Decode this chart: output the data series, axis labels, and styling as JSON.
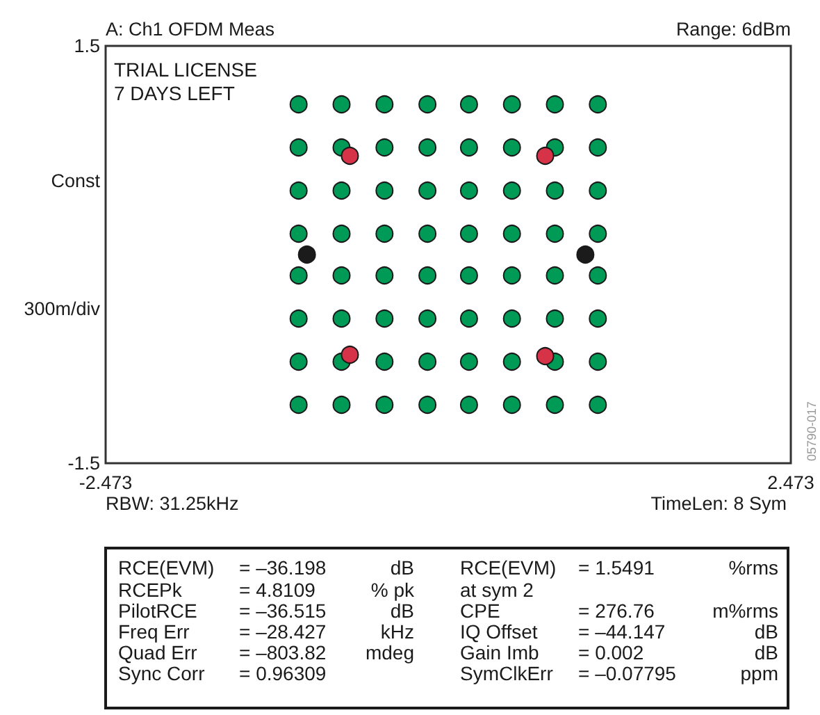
{
  "chart_data": {
    "type": "scatter",
    "title": "A: Ch1 OFDM Meas",
    "subtitle": "Range: 6dBm",
    "ylabel": "Const",
    "annotations": [
      "300m/div",
      "TRIAL LICENSE",
      "7 DAYS LEFT",
      "RBW: 31.25kHz",
      "TimeLen: 8 Sym",
      "05790-017",
      "RCE(EVM)\t= –36.198\tdB\tRCE(EVM)\t= 1.5491\t%rms",
      "RCEPk\t= 4.8109\t% pk\tat sym 2",
      "PilotRCE\t= –36.515\tdB\tCPE\t= 276.76\tm%rms",
      "Freq Err\t= –28.427\tkHz\tIQ Offset\t= –44.147\tdB",
      "Quad Err\t= –803.82\tmdeg\tGain Imb\t= 0.002\tdB",
      "Sync Corr\t= 0.96309\t\tSymClkErr\t= –0.07795\tppm"
    ],
    "xlim": [
      -2.473,
      2.473
    ],
    "xticks": [
      -2.473,
      2.473
    ],
    "ylim": [
      -1.5,
      1.5
    ],
    "yticks": [
      -1.5,
      1.5
    ],
    "marker": "circle",
    "series": [
      {
        "color": "#009a57",
        "x": [
          -1.08,
          -0.77,
          -0.46,
          -0.15,
          0.15,
          0.46,
          0.77,
          1.08,
          -1.08,
          -0.77,
          -0.46,
          -0.15,
          0.15,
          0.46,
          0.77,
          1.08,
          -1.08,
          -0.77,
          -0.46,
          -0.15,
          0.15,
          0.46,
          0.77,
          1.08,
          -1.08,
          -0.77,
          -0.46,
          -0.15,
          0.15,
          0.46,
          0.77,
          1.08,
          -1.08,
          -0.77,
          -0.46,
          -0.15,
          0.15,
          0.46,
          0.77,
          1.08,
          -1.08,
          -0.77,
          -0.46,
          -0.15,
          0.15,
          0.46,
          0.77,
          1.08,
          -1.08,
          -0.77,
          -0.46,
          -0.15,
          0.15,
          0.46,
          0.77,
          1.08,
          -1.08,
          -0.77,
          -0.46,
          -0.15,
          0.15,
          0.46,
          0.77,
          1.08
        ],
        "values": [
          1.08,
          1.08,
          1.08,
          1.08,
          1.08,
          1.08,
          1.08,
          1.08,
          0.77,
          0.77,
          0.77,
          0.77,
          0.77,
          0.77,
          0.77,
          0.77,
          0.46,
          0.46,
          0.46,
          0.46,
          0.46,
          0.46,
          0.46,
          0.46,
          0.15,
          0.15,
          0.15,
          0.15,
          0.15,
          0.15,
          0.15,
          0.15,
          -0.15,
          -0.15,
          -0.15,
          -0.15,
          -0.15,
          -0.15,
          -0.15,
          -0.15,
          -0.46,
          -0.46,
          -0.46,
          -0.46,
          -0.46,
          -0.46,
          -0.46,
          -0.46,
          -0.77,
          -0.77,
          -0.77,
          -0.77,
          -0.77,
          -0.77,
          -0.77,
          -0.77,
          -1.08,
          -1.08,
          -1.08,
          -1.08,
          -1.08,
          -1.08,
          -1.08,
          -1.08
        ]
      },
      {
        "color": "#d63349",
        "x": [
          -0.71,
          0.7,
          -0.71,
          0.7
        ],
        "values": [
          0.71,
          0.71,
          -0.72,
          -0.73
        ]
      },
      {
        "color": "#1b1b1b",
        "x": [
          -1.02,
          0.99
        ],
        "values": [
          0,
          0
        ]
      }
    ]
  }
}
